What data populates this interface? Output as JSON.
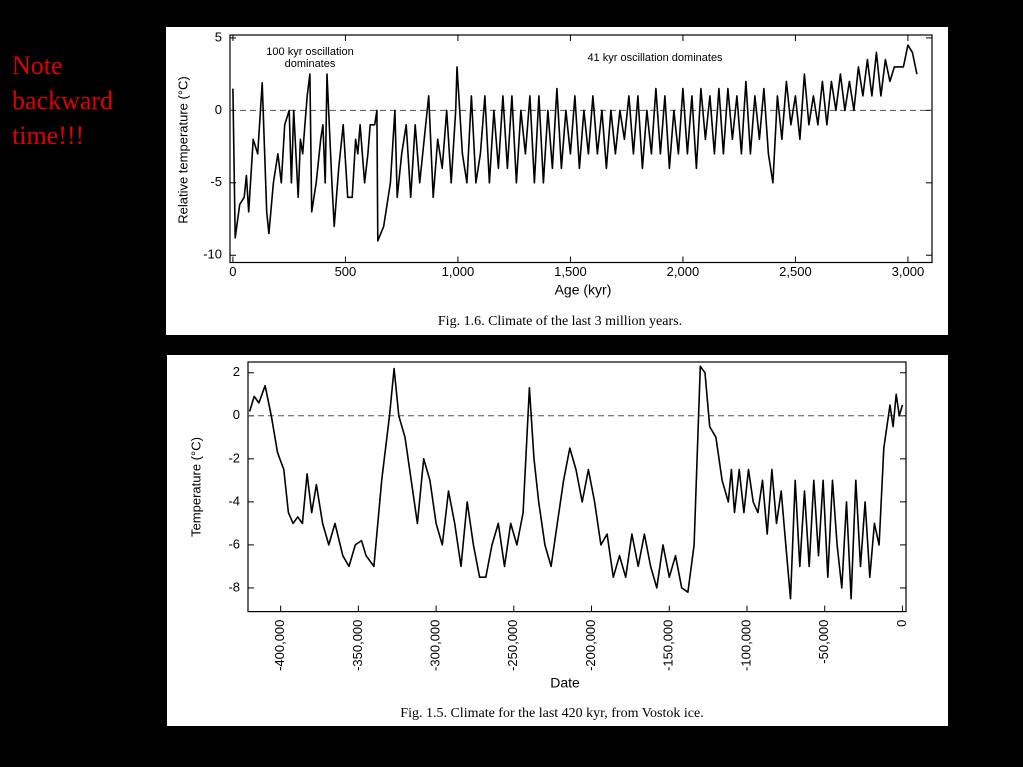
{
  "note": "Note backward time!!!",
  "chart_data": [
    {
      "type": "line",
      "caption": "Fig. 1.6. Climate of the last 3 million years.",
      "x_label": "Age (kyr)",
      "y_label": "Relative temperature (°C)",
      "annotations": [
        "100 kyr oscillation dominates",
        "41 kyr oscillation dominates"
      ],
      "xlim": [
        -13,
        3107
      ],
      "ylim": [
        -10.5,
        5.2
      ],
      "xticks": [
        0,
        500,
        {
          "value": 1000,
          "label": "1,000"
        },
        {
          "value": 1500,
          "label": "1,500"
        },
        {
          "value": 2000,
          "label": "2,000"
        },
        {
          "value": 2500,
          "label": "2,500"
        },
        {
          "value": 3000,
          "label": "3,000"
        }
      ],
      "yticks": [
        -10,
        -5,
        0,
        5
      ],
      "hline": 0,
      "color": "#000000",
      "x": [
        0,
        10,
        30,
        50,
        60,
        70,
        90,
        110,
        130,
        150,
        160,
        180,
        200,
        215,
        230,
        250,
        260,
        270,
        290,
        300,
        310,
        320,
        330,
        342,
        350,
        370,
        390,
        400,
        410,
        418,
        440,
        450,
        470,
        490,
        510,
        530,
        545,
        555,
        565,
        585,
        600,
        610,
        630,
        640,
        644,
        670,
        700,
        720,
        730,
        750,
        770,
        790,
        810,
        830,
        850,
        870,
        890,
        910,
        930,
        950,
        970,
        990,
        996,
        1020,
        1040,
        1060,
        1080,
        1100,
        1120,
        1140,
        1160,
        1180,
        1200,
        1220,
        1240,
        1260,
        1280,
        1300,
        1320,
        1340,
        1360,
        1380,
        1400,
        1420,
        1440,
        1460,
        1480,
        1500,
        1520,
        1540,
        1560,
        1580,
        1600,
        1620,
        1640,
        1660,
        1680,
        1700,
        1720,
        1740,
        1760,
        1780,
        1800,
        1820,
        1840,
        1860,
        1880,
        1900,
        1920,
        1940,
        1960,
        1980,
        2000,
        2020,
        2040,
        2060,
        2080,
        2100,
        2120,
        2140,
        2160,
        2180,
        2200,
        2220,
        2240,
        2260,
        2280,
        2300,
        2320,
        2340,
        2360,
        2380,
        2400,
        2420,
        2440,
        2460,
        2480,
        2500,
        2520,
        2540,
        2560,
        2580,
        2600,
        2620,
        2640,
        2660,
        2680,
        2700,
        2720,
        2740,
        2760,
        2780,
        2800,
        2820,
        2840,
        2860,
        2880,
        2900,
        2920,
        2940,
        2960,
        2980,
        3000,
        3020,
        3040
      ],
      "values": [
        1.5,
        -8.8,
        -6.5,
        -6,
        -4.5,
        -7,
        -2,
        -3,
        1.9,
        -7,
        -8.5,
        -5,
        -3,
        -5,
        -1,
        0,
        -5,
        0,
        -6,
        -2,
        -3,
        -1,
        1,
        2.5,
        -7,
        -5,
        -2,
        -1,
        -5,
        2.5,
        -5,
        -8,
        -4,
        -1,
        -6,
        -6,
        -2,
        -3,
        -1,
        -5,
        -3,
        -1,
        -1,
        0,
        -9,
        -8,
        -5,
        0,
        -6,
        -3,
        -1,
        -6,
        -1,
        -5,
        -2,
        1,
        -6,
        -2,
        -4,
        0,
        -5,
        0,
        3,
        -3,
        -5,
        1,
        -5,
        -3,
        1,
        -5,
        0,
        -4,
        1,
        -4,
        1,
        -5,
        0,
        -3,
        1,
        -5,
        1,
        -5,
        0,
        -4,
        1.5,
        -4,
        0,
        -3,
        1,
        -4,
        0,
        -3,
        1,
        -3,
        0,
        -4,
        0,
        -3,
        0,
        -2,
        1,
        -3,
        1,
        -4,
        0,
        -3,
        1.5,
        -3,
        1,
        -4,
        0,
        -3,
        1.5,
        -3,
        1,
        -4,
        1.5,
        -2,
        1,
        -3,
        1.5,
        -3,
        1.5,
        -2,
        1,
        -3,
        2,
        -3,
        1,
        -2,
        1.5,
        -3,
        -5,
        1,
        -2,
        2,
        -1,
        1,
        -2,
        2.5,
        -1,
        1,
        -1,
        2,
        -1,
        2,
        0,
        2.5,
        0,
        2,
        0,
        3,
        1,
        3.5,
        1,
        4,
        1,
        3.5,
        2,
        3,
        3,
        3,
        4.5,
        4,
        2.5
      ]
    },
    {
      "type": "line",
      "caption": "Fig. 1.5. Climate for the last 420 kyr, from Vostok ice.",
      "x_label": "Date",
      "y_label": "Temperature (°C)",
      "xlim": [
        -421000,
        2300
      ],
      "ylim": [
        -9.1,
        2.5
      ],
      "xticks": [
        {
          "value": -400000,
          "label": "-400,000"
        },
        {
          "value": -350000,
          "label": "-350,000"
        },
        {
          "value": -300000,
          "label": "-300,000"
        },
        {
          "value": -250000,
          "label": "-250,000"
        },
        {
          "value": -200000,
          "label": "-200,000"
        },
        {
          "value": -150000,
          "label": "-150,000"
        },
        {
          "value": -100000,
          "label": "-100,000"
        },
        {
          "value": -50000,
          "label": "-50,000"
        },
        0
      ],
      "yticks": [
        -8,
        -6,
        -4,
        -2,
        0,
        2
      ],
      "hline": 0,
      "color": "#000000",
      "x": [
        -420000,
        -417000,
        -414000,
        -410000,
        -406000,
        -402000,
        -398000,
        -395000,
        -392000,
        -389000,
        -386000,
        -383000,
        -380000,
        -377000,
        -373000,
        -369000,
        -365000,
        -360000,
        -356000,
        -352000,
        -348000,
        -345000,
        -340000,
        -335000,
        -330000,
        -327000,
        -324000,
        -320000,
        -316000,
        -312000,
        -308000,
        -304000,
        -300000,
        -296000,
        -292000,
        -288000,
        -284000,
        -280000,
        -276000,
        -272000,
        -268000,
        -264000,
        -260000,
        -256000,
        -252000,
        -248000,
        -244000,
        -240000,
        -237000,
        -234000,
        -230000,
        -226000,
        -222000,
        -218000,
        -214000,
        -210000,
        -206000,
        -202000,
        -198000,
        -194000,
        -190000,
        -186000,
        -182000,
        -178000,
        -174000,
        -170000,
        -166000,
        -162000,
        -158000,
        -154000,
        -150000,
        -146000,
        -142000,
        -138000,
        -134000,
        -130000,
        -127000,
        -124000,
        -120000,
        -116000,
        -112000,
        -110000,
        -108000,
        -105000,
        -102000,
        -99000,
        -96000,
        -93000,
        -90000,
        -87000,
        -84000,
        -81000,
        -78000,
        -75000,
        -72000,
        -69000,
        -66000,
        -63000,
        -60000,
        -57000,
        -54000,
        -51000,
        -48000,
        -45000,
        -42000,
        -39000,
        -36000,
        -33000,
        -30000,
        -27000,
        -24000,
        -21000,
        -18000,
        -15000,
        -12000,
        -10000,
        -8000,
        -6000,
        -4000,
        -2000,
        0
      ],
      "values": [
        0.2,
        0.9,
        0.6,
        1.4,
        0,
        -1.7,
        -2.5,
        -4.5,
        -5,
        -4.7,
        -5,
        -2.7,
        -4.5,
        -3.2,
        -5,
        -6,
        -5,
        -6.5,
        -7,
        -6,
        -5.8,
        -6.5,
        -7,
        -3,
        0,
        2.2,
        0,
        -1,
        -3,
        -5,
        -2,
        -3,
        -5,
        -6,
        -3.5,
        -5,
        -7,
        -4,
        -6,
        -7.5,
        -7.5,
        -6,
        -5,
        -7,
        -5,
        -6,
        -4.5,
        1.3,
        -2,
        -4,
        -6,
        -7,
        -5,
        -3,
        -1.5,
        -2.5,
        -4,
        -2.5,
        -4,
        -6,
        -5.5,
        -7.5,
        -6.5,
        -7.5,
        -5.5,
        -7,
        -5.5,
        -7,
        -8,
        -6,
        -7.5,
        -6.5,
        -8,
        -8.2,
        -6,
        2.3,
        2,
        -0.5,
        -1,
        -3,
        -4,
        -2.5,
        -4.5,
        -2.5,
        -4.5,
        -2.5,
        -4,
        -4.5,
        -3,
        -5.5,
        -2.5,
        -5,
        -3.5,
        -6,
        -8.5,
        -3,
        -7,
        -3.5,
        -7,
        -3,
        -6.5,
        -3,
        -7.5,
        -3,
        -6,
        -8,
        -4,
        -8.5,
        -3,
        -7,
        -4,
        -7.5,
        -5,
        -6,
        -1.5,
        -0.5,
        0.5,
        -0.5,
        1,
        0,
        0.5
      ]
    }
  ]
}
